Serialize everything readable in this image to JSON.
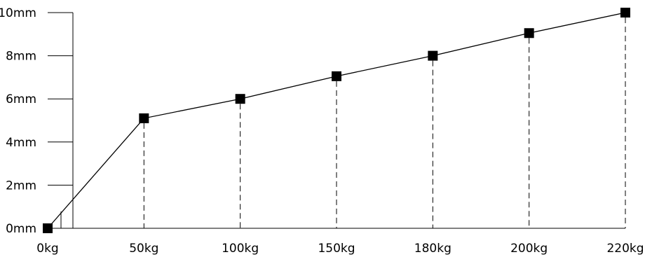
{
  "chart_data": {
    "type": "line",
    "categories": [
      "0kg",
      "50kg",
      "100kg",
      "150kg",
      "180kg",
      "200kg",
      "220kg"
    ],
    "series": [
      {
        "values": [
          0,
          5.1,
          6,
          7.05,
          8,
          9.05,
          10
        ]
      }
    ],
    "y_ticks": [
      "0mm",
      "2mm",
      "4mm",
      "6mm",
      "8mm",
      "10mm"
    ],
    "ylim": [
      0,
      10
    ],
    "x_spacing": "categorical, evenly spaced",
    "marker": "square",
    "drop_lines": "dashed",
    "grid": false,
    "legend": "none",
    "colors": {
      "line": "#000000",
      "marker": "#000000",
      "axis": "#000000"
    }
  }
}
